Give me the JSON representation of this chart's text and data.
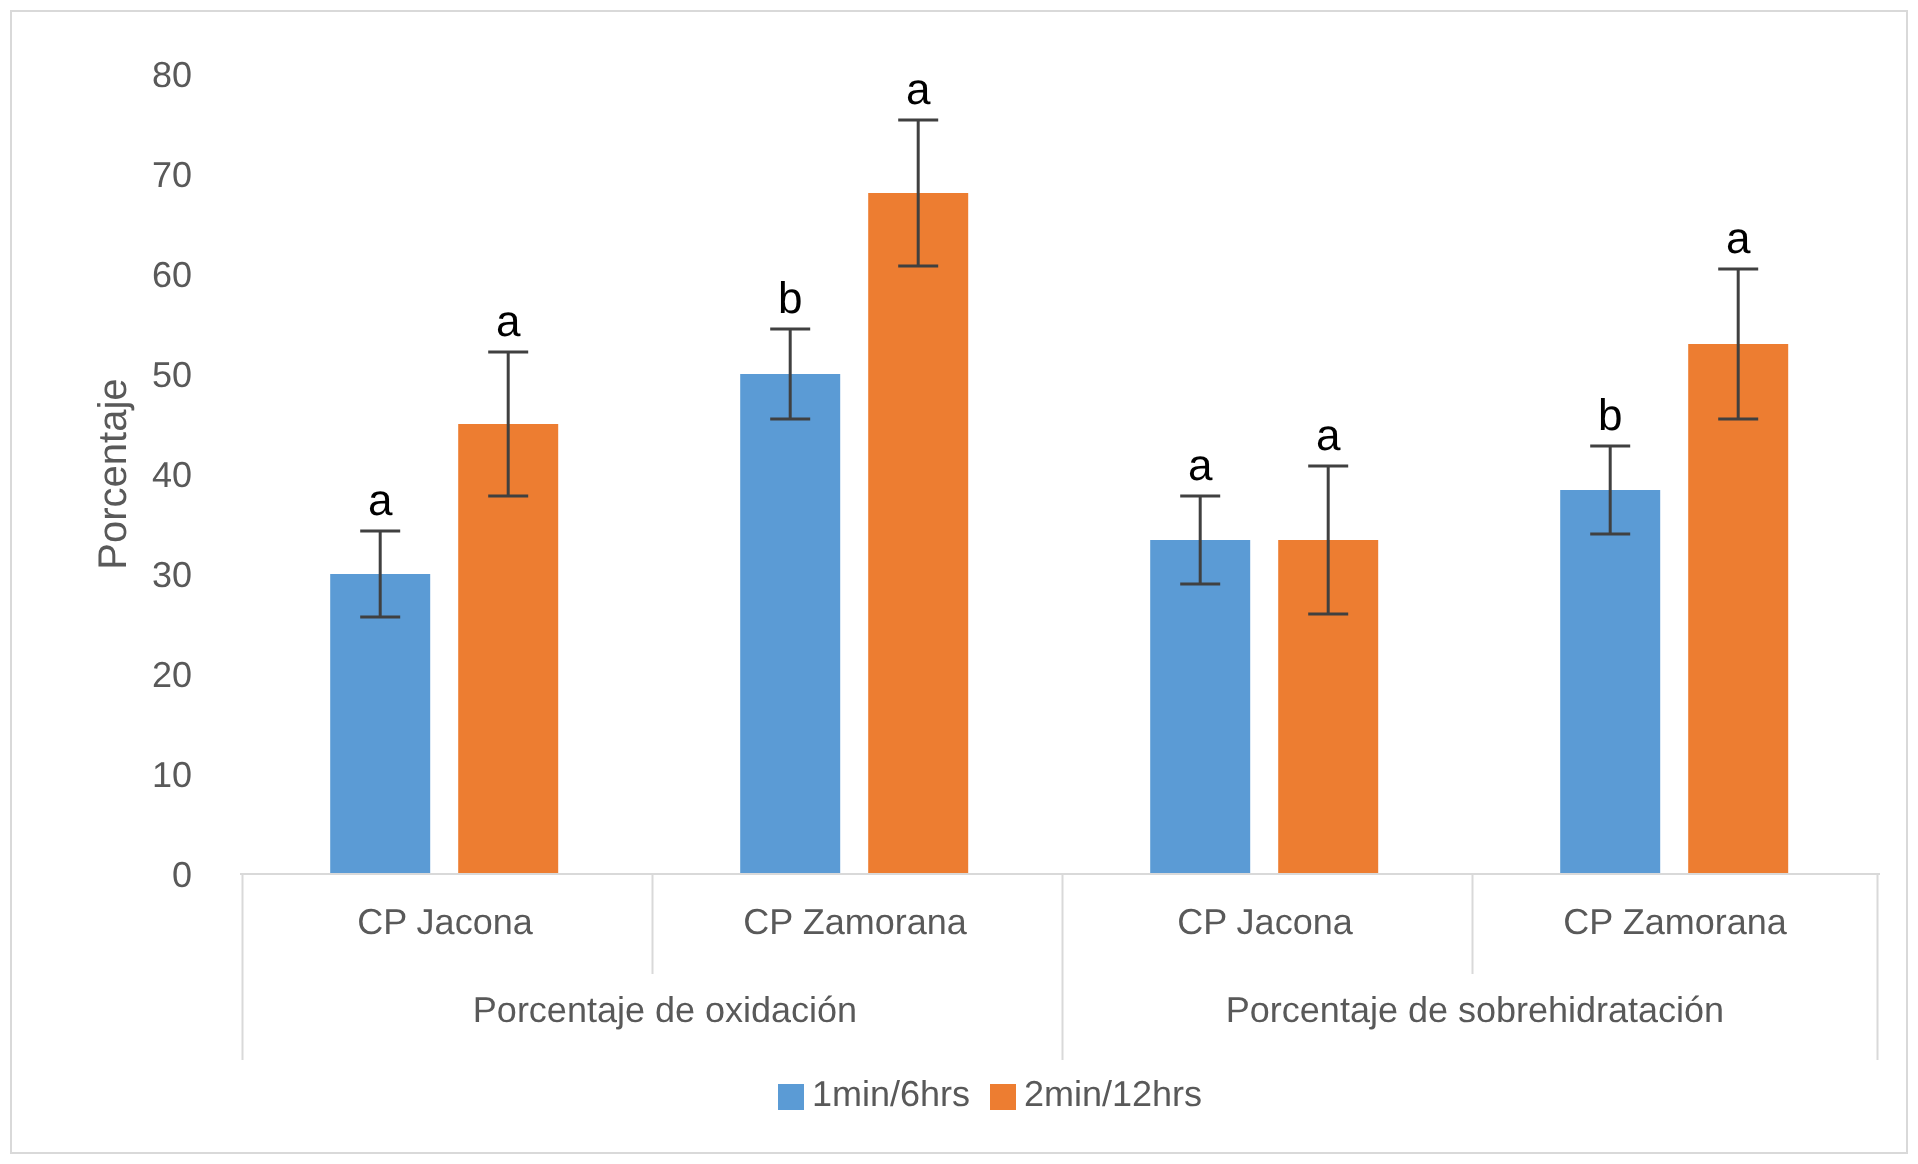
{
  "chart_data": {
    "type": "bar",
    "ylabel": "Porcentaje",
    "categories": [
      "CP Jacona",
      "CP Zamorana",
      "CP Jacona",
      "CP Zamorana"
    ],
    "series": [
      {
        "name": "1min/6hrs",
        "color": "#5b9bd5",
        "values": [
          30,
          50,
          33.4,
          38.4
        ],
        "errors": [
          4.3,
          4.5,
          4.4,
          4.4
        ],
        "value_labels": [
          "a",
          "b",
          "a",
          "b"
        ]
      },
      {
        "name": "2min/12hrs",
        "color": "#ed7d31",
        "values": [
          45,
          68.1,
          33.4,
          53
        ],
        "errors": [
          7.2,
          7.3,
          7.4,
          7.5
        ],
        "value_labels": [
          "a",
          "a",
          "a",
          "a"
        ]
      }
    ],
    "annotations": [
      "Porcentaje de oxidación",
      "Porcentaje de sobrehidratación"
    ],
    "ylim": [
      0,
      80
    ],
    "yticks": [
      0,
      10,
      20,
      30,
      40,
      50,
      60,
      70,
      80
    ],
    "legend": "bottom"
  }
}
